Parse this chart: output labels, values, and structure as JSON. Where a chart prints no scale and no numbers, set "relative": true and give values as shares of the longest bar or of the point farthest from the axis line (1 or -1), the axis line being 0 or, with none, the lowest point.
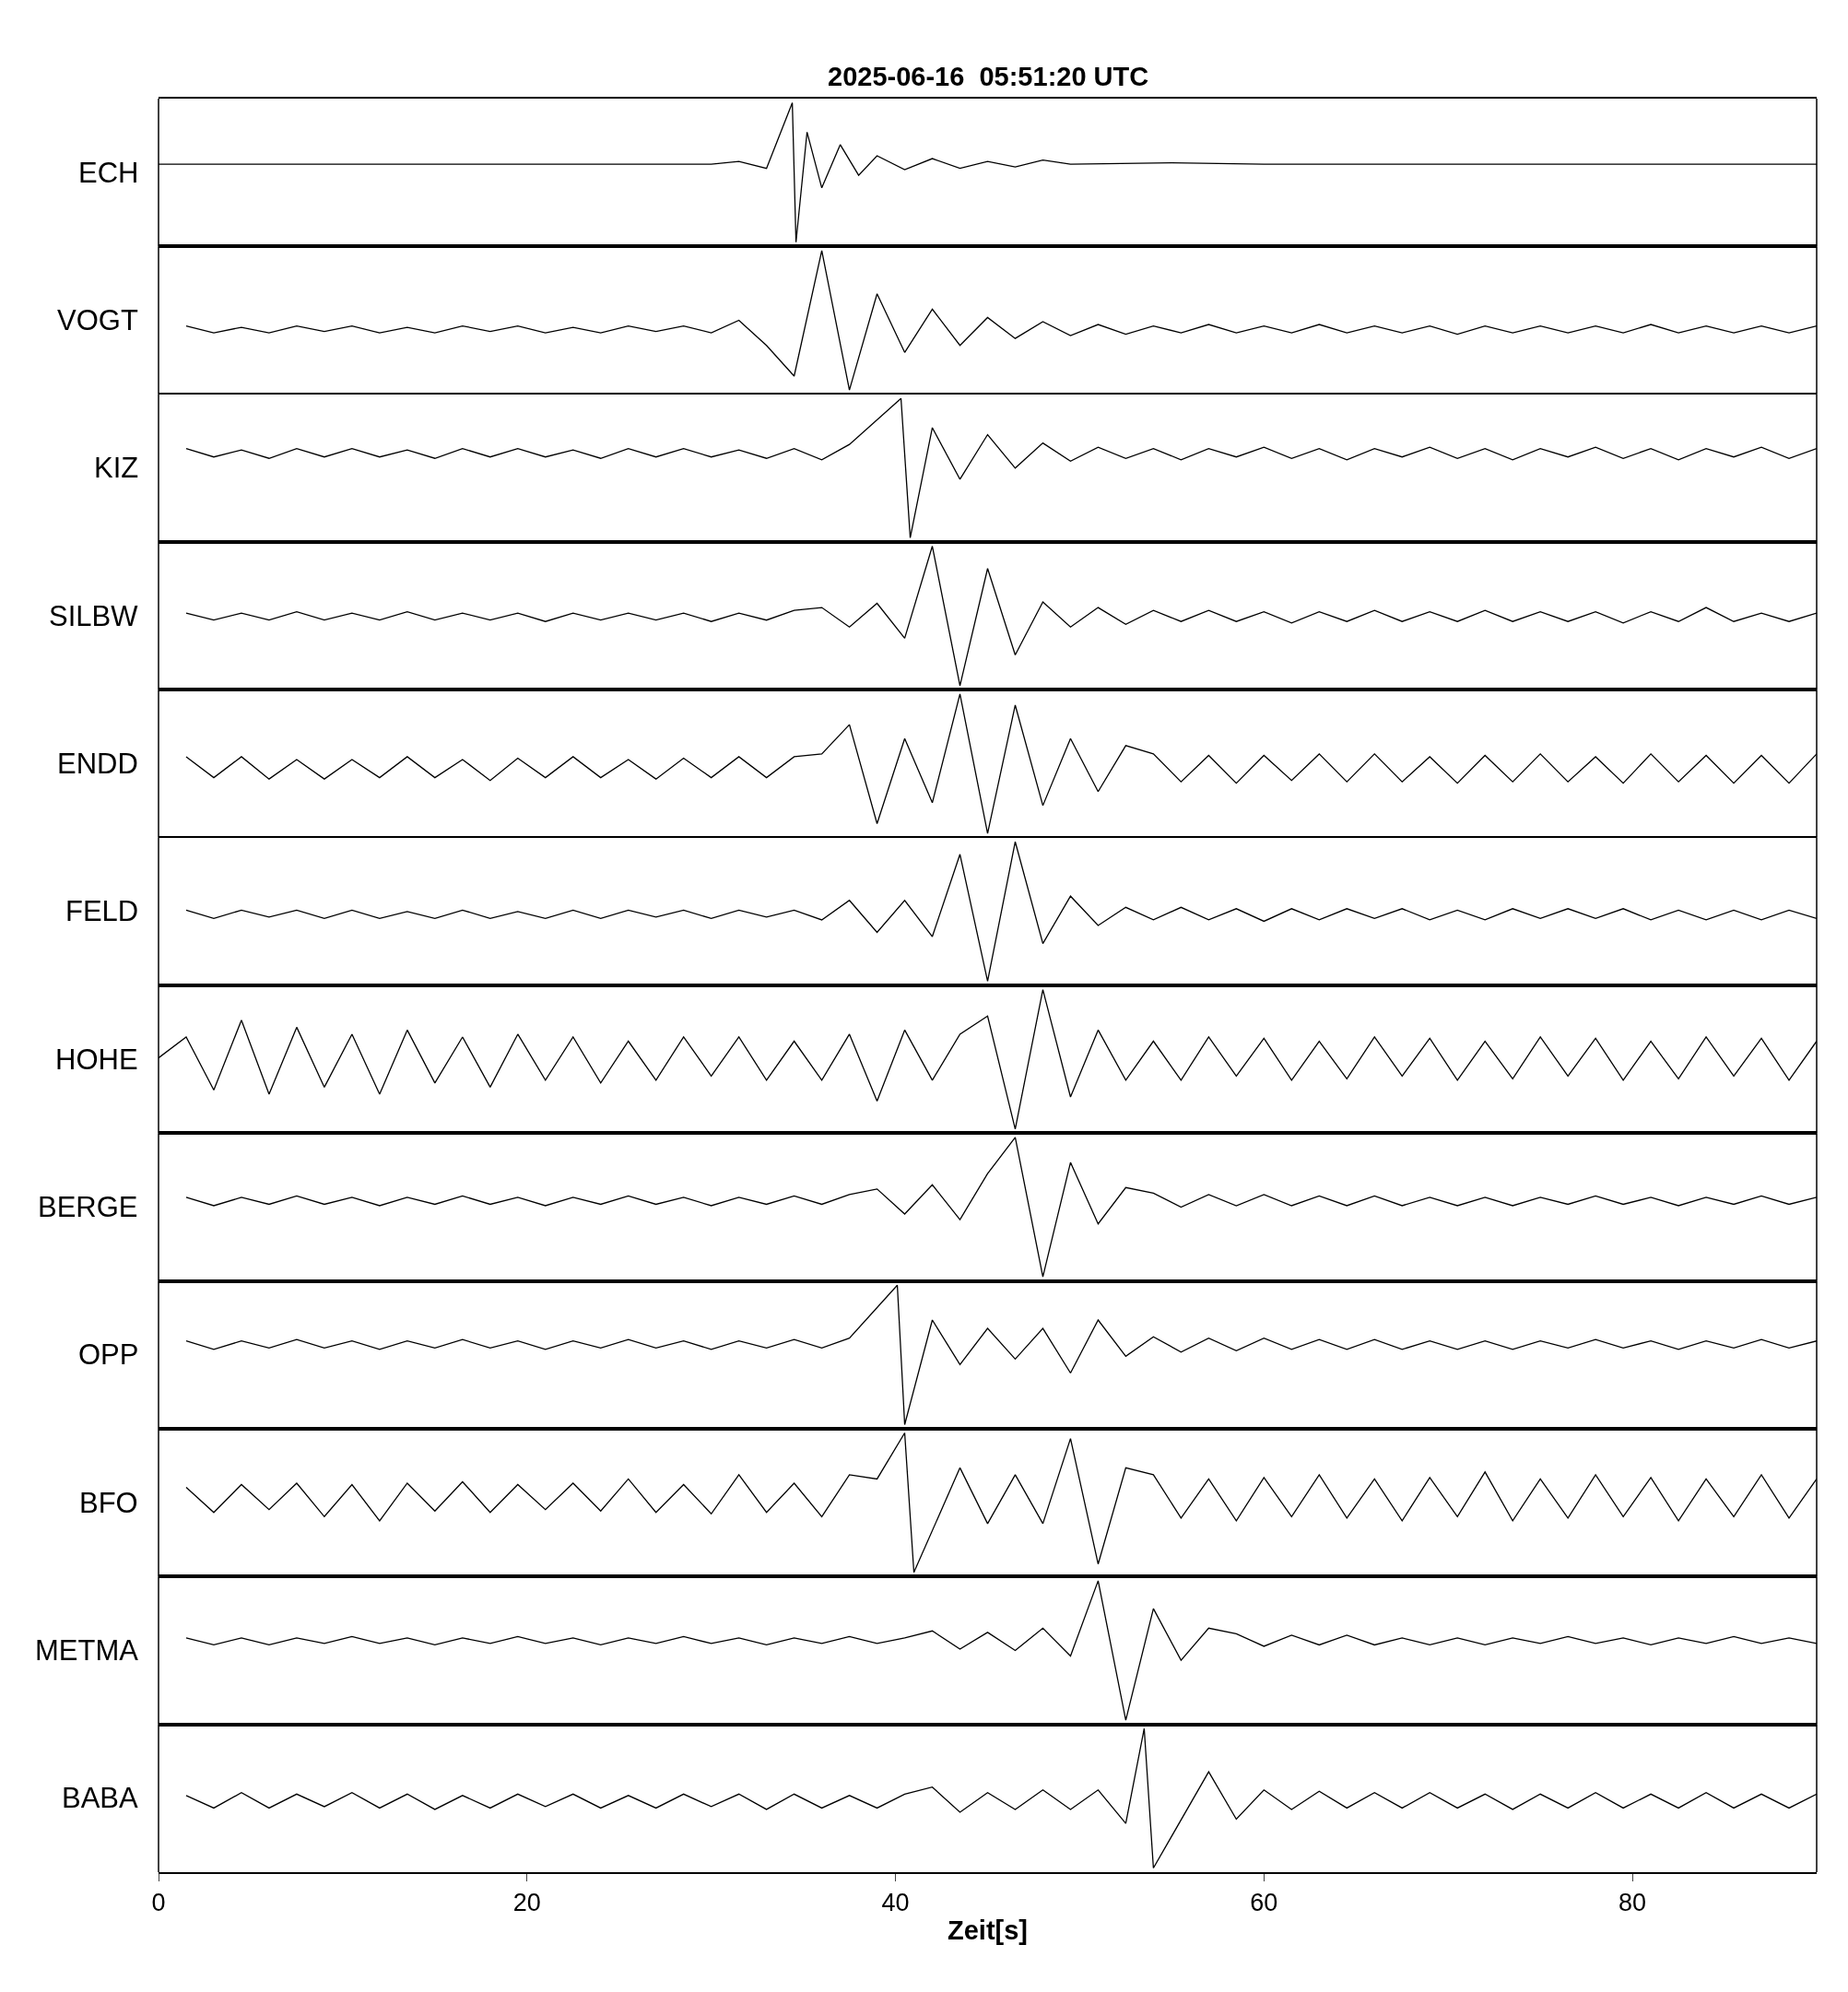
{
  "chart_data": [
    {
      "type": "line",
      "title": "2025-06-16  05:51:20 UTC",
      "ylabel": "ECH",
      "relative": true,
      "color": "#000000",
      "xlim": [
        0,
        90
      ],
      "xticks": [
        0,
        20,
        40,
        60,
        80
      ],
      "tick_labels": false,
      "x": [
        0,
        30,
        31.5,
        33,
        34.4,
        34.6,
        35.2,
        36,
        37,
        38,
        39,
        40.5,
        42,
        43.5,
        45,
        46.5,
        48,
        49.5,
        55,
        60,
        90
      ],
      "values": [
        0.56,
        0.56,
        0.58,
        0.53,
        1,
        0,
        0.79,
        0.39,
        0.7,
        0.48,
        0.62,
        0.52,
        0.6,
        0.53,
        0.58,
        0.54,
        0.59,
        0.56,
        0.57,
        0.56,
        0.56
      ]
    },
    {
      "type": "line",
      "ylabel": "VOGT",
      "relative": true,
      "color": "#000000",
      "xlim": [
        0,
        90
      ],
      "xticks": [
        0,
        20,
        40,
        60,
        80
      ],
      "tick_labels": false,
      "x": [
        1.5,
        3,
        4.5,
        6,
        7.5,
        9,
        10.5,
        12,
        13.5,
        15,
        16.5,
        18,
        19.5,
        21,
        22.5,
        24,
        25.5,
        27,
        28.5,
        30,
        31.5,
        33,
        34.5,
        36,
        37.5,
        39,
        40.5,
        42,
        43.5,
        45,
        46.5,
        48,
        49.5,
        51,
        52.5,
        54,
        55.5,
        57,
        58.5,
        60,
        61.5,
        63,
        64.5,
        66,
        67.5,
        69,
        70.5,
        72,
        73.5,
        75,
        76.5,
        78,
        79.5,
        81,
        82.5,
        84,
        85.5,
        87,
        88.5,
        90
      ],
      "values": [
        0.46,
        0.41,
        0.45,
        0.41,
        0.46,
        0.42,
        0.46,
        0.41,
        0.45,
        0.41,
        0.46,
        0.42,
        0.46,
        0.41,
        0.45,
        0.41,
        0.46,
        0.42,
        0.46,
        0.41,
        0.5,
        0.32,
        0.1,
        1,
        0,
        0.69,
        0.27,
        0.58,
        0.32,
        0.52,
        0.37,
        0.49,
        0.39,
        0.47,
        0.4,
        0.46,
        0.41,
        0.47,
        0.41,
        0.46,
        0.41,
        0.47,
        0.41,
        0.46,
        0.41,
        0.46,
        0.4,
        0.46,
        0.41,
        0.46,
        0.41,
        0.46,
        0.41,
        0.47,
        0.41,
        0.46,
        0.41,
        0.46,
        0.41,
        0.46
      ]
    },
    {
      "type": "line",
      "ylabel": "KIZ",
      "relative": true,
      "color": "#000000",
      "xlim": [
        0,
        90
      ],
      "xticks": [
        0,
        20,
        40,
        60,
        80
      ],
      "tick_labels": false,
      "x": [
        1.5,
        3,
        4.5,
        6,
        7.5,
        9,
        10.5,
        12,
        13.5,
        15,
        16.5,
        18,
        19.5,
        21,
        22.5,
        24,
        25.5,
        27,
        28.5,
        30,
        31.5,
        33,
        34.5,
        36,
        37.5,
        40.3,
        40.8,
        42,
        43.5,
        45,
        46.5,
        48,
        49.5,
        51,
        52.5,
        54,
        55.5,
        57,
        58.5,
        60,
        61.5,
        63,
        64.5,
        66,
        67.5,
        69,
        70.5,
        72,
        73.5,
        75,
        76.5,
        78,
        79.5,
        81,
        82.5,
        84,
        85.5,
        87,
        88.5,
        90
      ],
      "values": [
        0.64,
        0.58,
        0.63,
        0.57,
        0.64,
        0.58,
        0.64,
        0.58,
        0.63,
        0.57,
        0.64,
        0.58,
        0.64,
        0.58,
        0.63,
        0.57,
        0.64,
        0.58,
        0.64,
        0.58,
        0.63,
        0.57,
        0.64,
        0.56,
        0.67,
        1,
        0,
        0.79,
        0.42,
        0.74,
        0.5,
        0.68,
        0.55,
        0.65,
        0.57,
        0.64,
        0.56,
        0.64,
        0.58,
        0.65,
        0.57,
        0.64,
        0.56,
        0.64,
        0.58,
        0.65,
        0.57,
        0.64,
        0.56,
        0.64,
        0.58,
        0.65,
        0.57,
        0.64,
        0.56,
        0.64,
        0.58,
        0.65,
        0.57,
        0.64
      ]
    },
    {
      "type": "line",
      "ylabel": "SILBW",
      "relative": true,
      "color": "#000000",
      "xlim": [
        0,
        90
      ],
      "xticks": [
        0,
        20,
        40,
        60,
        80
      ],
      "tick_labels": false,
      "x": [
        1.5,
        3,
        4.5,
        6,
        7.5,
        9,
        10.5,
        12,
        13.5,
        15,
        16.5,
        18,
        19.5,
        21,
        22.5,
        24,
        25.5,
        27,
        28.5,
        30,
        31.5,
        33,
        34.5,
        36,
        37.5,
        39,
        40.5,
        42,
        43.5,
        45,
        46.5,
        48,
        49.5,
        51,
        52.5,
        54,
        55.5,
        57,
        58.5,
        60,
        61.5,
        63,
        64.5,
        66,
        67.5,
        69,
        70.5,
        72,
        73.5,
        75,
        76.5,
        78,
        79.5,
        81,
        82.5,
        84,
        85.5,
        87,
        88.5,
        90
      ],
      "values": [
        0.52,
        0.47,
        0.52,
        0.47,
        0.53,
        0.47,
        0.52,
        0.47,
        0.53,
        0.47,
        0.52,
        0.47,
        0.52,
        0.46,
        0.52,
        0.47,
        0.52,
        0.47,
        0.52,
        0.46,
        0.52,
        0.47,
        0.54,
        0.56,
        0.42,
        0.59,
        0.34,
        1,
        0,
        0.84,
        0.22,
        0.6,
        0.42,
        0.56,
        0.44,
        0.54,
        0.46,
        0.54,
        0.46,
        0.53,
        0.45,
        0.53,
        0.46,
        0.54,
        0.46,
        0.53,
        0.46,
        0.54,
        0.46,
        0.53,
        0.46,
        0.53,
        0.45,
        0.53,
        0.46,
        0.56,
        0.46,
        0.52,
        0.46,
        0.52
      ]
    },
    {
      "type": "line",
      "ylabel": "ENDD",
      "relative": true,
      "color": "#000000",
      "xlim": [
        0,
        90
      ],
      "xticks": [
        0,
        20,
        40,
        60,
        80
      ],
      "tick_labels": false,
      "x": [
        1.5,
        3,
        4.5,
        6,
        7.5,
        9,
        10.5,
        12,
        13.5,
        15,
        16.5,
        18,
        19.5,
        21,
        22.5,
        24,
        25.5,
        27,
        28.5,
        30,
        31.5,
        33,
        34.5,
        36,
        37.5,
        39,
        40.5,
        42,
        43.5,
        45,
        46.5,
        48,
        49.5,
        51,
        52.5,
        54,
        55.5,
        57,
        58.5,
        60,
        61.5,
        63,
        64.5,
        66,
        67.5,
        69,
        70.5,
        72,
        73.5,
        75,
        76.5,
        78,
        79.5,
        81,
        82.5,
        84,
        85.5,
        87,
        88.5,
        90
      ],
      "values": [
        0.55,
        0.4,
        0.55,
        0.39,
        0.53,
        0.39,
        0.53,
        0.4,
        0.55,
        0.4,
        0.53,
        0.38,
        0.54,
        0.4,
        0.55,
        0.4,
        0.53,
        0.39,
        0.54,
        0.4,
        0.55,
        0.4,
        0.55,
        0.57,
        0.78,
        0.07,
        0.68,
        0.22,
        1,
        0,
        0.92,
        0.2,
        0.68,
        0.3,
        0.63,
        0.57,
        0.37,
        0.56,
        0.36,
        0.56,
        0.38,
        0.57,
        0.37,
        0.57,
        0.37,
        0.55,
        0.36,
        0.56,
        0.37,
        0.57,
        0.37,
        0.55,
        0.36,
        0.57,
        0.37,
        0.56,
        0.36,
        0.56,
        0.36,
        0.57
      ]
    },
    {
      "type": "line",
      "ylabel": "FELD",
      "relative": true,
      "color": "#000000",
      "xlim": [
        0,
        90
      ],
      "xticks": [
        0,
        20,
        40,
        60,
        80
      ],
      "tick_labels": false,
      "x": [
        1.5,
        3,
        4.5,
        6,
        7.5,
        9,
        10.5,
        12,
        13.5,
        15,
        16.5,
        18,
        19.5,
        21,
        22.5,
        24,
        25.5,
        27,
        28.5,
        30,
        31.5,
        33,
        34.5,
        36,
        37.5,
        39,
        40.5,
        42,
        43.5,
        45,
        46.5,
        48,
        49.5,
        51,
        52.5,
        54,
        55.5,
        57,
        58.5,
        60,
        61.5,
        63,
        64.5,
        66,
        67.5,
        69,
        70.5,
        72,
        73.5,
        75,
        76.5,
        78,
        79.5,
        81,
        82.5,
        84,
        85.5,
        87,
        88.5,
        90
      ],
      "values": [
        0.51,
        0.45,
        0.51,
        0.46,
        0.51,
        0.45,
        0.51,
        0.45,
        0.5,
        0.45,
        0.51,
        0.45,
        0.5,
        0.45,
        0.51,
        0.45,
        0.51,
        0.46,
        0.51,
        0.45,
        0.51,
        0.46,
        0.51,
        0.44,
        0.58,
        0.35,
        0.58,
        0.32,
        0.91,
        0,
        1,
        0.27,
        0.61,
        0.4,
        0.53,
        0.44,
        0.53,
        0.44,
        0.52,
        0.43,
        0.52,
        0.44,
        0.52,
        0.45,
        0.52,
        0.44,
        0.51,
        0.44,
        0.52,
        0.45,
        0.52,
        0.45,
        0.52,
        0.44,
        0.51,
        0.44,
        0.51,
        0.44,
        0.51,
        0.45
      ]
    },
    {
      "type": "line",
      "ylabel": "HOHE",
      "relative": true,
      "color": "#000000",
      "xlim": [
        0,
        90
      ],
      "xticks": [
        0,
        20,
        40,
        60,
        80
      ],
      "tick_labels": false,
      "x": [
        0,
        1.5,
        3,
        4.5,
        6,
        7.5,
        9,
        10.5,
        12,
        13.5,
        15,
        16.5,
        18,
        19.5,
        21,
        22.5,
        24,
        25.5,
        27,
        28.5,
        30,
        31.5,
        33,
        34.5,
        36,
        37.5,
        39,
        40.5,
        42,
        43.5,
        45,
        46.5,
        48,
        49.5,
        51,
        52.5,
        54,
        55.5,
        57,
        58.5,
        60,
        61.5,
        63,
        64.5,
        66,
        67.5,
        69,
        70.5,
        72,
        73.5,
        75,
        76.5,
        78,
        79.5,
        81,
        82.5,
        84,
        85.5,
        87,
        88.5,
        90
      ],
      "values": [
        0.51,
        0.66,
        0.28,
        0.78,
        0.25,
        0.73,
        0.3,
        0.68,
        0.25,
        0.71,
        0.33,
        0.66,
        0.3,
        0.68,
        0.35,
        0.66,
        0.33,
        0.63,
        0.35,
        0.66,
        0.38,
        0.66,
        0.35,
        0.63,
        0.35,
        0.68,
        0.2,
        0.71,
        0.35,
        0.68,
        0.81,
        0,
        1,
        0.23,
        0.71,
        0.35,
        0.63,
        0.35,
        0.66,
        0.38,
        0.65,
        0.35,
        0.63,
        0.36,
        0.66,
        0.38,
        0.65,
        0.35,
        0.63,
        0.36,
        0.66,
        0.38,
        0.65,
        0.35,
        0.63,
        0.36,
        0.66,
        0.38,
        0.65,
        0.35,
        0.63
      ]
    },
    {
      "type": "line",
      "ylabel": "BERGE",
      "relative": true,
      "color": "#000000",
      "xlim": [
        0,
        90
      ],
      "xticks": [
        0,
        20,
        40,
        60,
        80
      ],
      "tick_labels": false,
      "x": [
        1.5,
        3,
        4.5,
        6,
        7.5,
        9,
        10.5,
        12,
        13.5,
        15,
        16.5,
        18,
        19.5,
        21,
        22.5,
        24,
        25.5,
        27,
        28.5,
        30,
        31.5,
        33,
        34.5,
        36,
        37.5,
        39,
        40.5,
        42,
        43.5,
        45,
        46.5,
        48,
        49.5,
        51,
        52.5,
        54,
        55.5,
        57,
        58.5,
        60,
        61.5,
        63,
        64.5,
        66,
        67.5,
        69,
        70.5,
        72,
        73.5,
        75,
        76.5,
        78,
        79.5,
        81,
        82.5,
        84,
        85.5,
        87,
        88.5,
        90
      ],
      "values": [
        0.57,
        0.51,
        0.57,
        0.52,
        0.58,
        0.52,
        0.57,
        0.51,
        0.57,
        0.52,
        0.58,
        0.52,
        0.57,
        0.51,
        0.57,
        0.52,
        0.58,
        0.52,
        0.57,
        0.51,
        0.57,
        0.52,
        0.58,
        0.52,
        0.59,
        0.63,
        0.45,
        0.66,
        0.41,
        0.74,
        1,
        0,
        0.82,
        0.38,
        0.64,
        0.6,
        0.5,
        0.59,
        0.51,
        0.59,
        0.51,
        0.58,
        0.51,
        0.58,
        0.51,
        0.57,
        0.51,
        0.57,
        0.51,
        0.57,
        0.52,
        0.58,
        0.52,
        0.57,
        0.51,
        0.57,
        0.52,
        0.58,
        0.52,
        0.57
      ]
    },
    {
      "type": "line",
      "ylabel": "OPP",
      "relative": true,
      "color": "#000000",
      "xlim": [
        0,
        90
      ],
      "xticks": [
        0,
        20,
        40,
        60,
        80
      ],
      "tick_labels": false,
      "x": [
        1.5,
        3,
        4.5,
        6,
        7.5,
        9,
        10.5,
        12,
        13.5,
        15,
        16.5,
        18,
        19.5,
        21,
        22.5,
        24,
        25.5,
        27,
        28.5,
        30,
        31.5,
        33,
        34.5,
        36,
        37.5,
        40.1,
        40.5,
        42,
        43.5,
        45,
        46.5,
        48,
        49.5,
        51,
        52.5,
        54,
        55.5,
        57,
        58.5,
        60,
        61.5,
        63,
        64.5,
        66,
        67.5,
        69,
        70.5,
        72,
        73.5,
        75,
        76.5,
        78,
        79.5,
        81,
        82.5,
        84,
        85.5,
        87,
        88.5,
        90
      ],
      "values": [
        0.6,
        0.54,
        0.6,
        0.55,
        0.61,
        0.55,
        0.6,
        0.54,
        0.6,
        0.55,
        0.61,
        0.55,
        0.6,
        0.54,
        0.6,
        0.55,
        0.61,
        0.55,
        0.6,
        0.54,
        0.6,
        0.55,
        0.61,
        0.55,
        0.62,
        1,
        0,
        0.75,
        0.43,
        0.69,
        0.47,
        0.69,
        0.37,
        0.75,
        0.49,
        0.63,
        0.52,
        0.62,
        0.53,
        0.62,
        0.54,
        0.61,
        0.54,
        0.61,
        0.54,
        0.6,
        0.54,
        0.6,
        0.54,
        0.6,
        0.55,
        0.61,
        0.55,
        0.6,
        0.54,
        0.6,
        0.55,
        0.61,
        0.55,
        0.6
      ]
    },
    {
      "type": "line",
      "ylabel": "BFO",
      "relative": true,
      "color": "#000000",
      "xlim": [
        0,
        90
      ],
      "xticks": [
        0,
        20,
        40,
        60,
        80
      ],
      "tick_labels": false,
      "x": [
        1.5,
        3,
        4.5,
        6,
        7.5,
        9,
        10.5,
        12,
        13.5,
        15,
        16.5,
        18,
        19.5,
        21,
        22.5,
        24,
        25.5,
        27,
        28.5,
        30,
        31.5,
        33,
        34.5,
        36,
        37.5,
        39,
        40.5,
        41,
        43.5,
        45,
        46.5,
        48,
        49.5,
        51,
        52.5,
        54,
        55.5,
        57,
        58.5,
        60,
        61.5,
        63,
        64.5,
        66,
        67.5,
        69,
        70.5,
        72,
        73.5,
        75,
        76.5,
        78,
        79.5,
        81,
        82.5,
        84,
        85.5,
        87,
        88.5,
        90
      ],
      "values": [
        0.61,
        0.43,
        0.63,
        0.45,
        0.64,
        0.4,
        0.63,
        0.37,
        0.64,
        0.44,
        0.65,
        0.43,
        0.63,
        0.45,
        0.64,
        0.44,
        0.67,
        0.43,
        0.63,
        0.42,
        0.7,
        0.43,
        0.64,
        0.4,
        0.7,
        0.67,
        1,
        0,
        0.75,
        0.35,
        0.7,
        0.35,
        0.96,
        0.06,
        0.75,
        0.7,
        0.39,
        0.67,
        0.37,
        0.68,
        0.4,
        0.7,
        0.39,
        0.67,
        0.37,
        0.68,
        0.4,
        0.72,
        0.37,
        0.67,
        0.39,
        0.7,
        0.4,
        0.68,
        0.37,
        0.67,
        0.4,
        0.7,
        0.39,
        0.67
      ]
    },
    {
      "type": "line",
      "ylabel": "METMA",
      "relative": true,
      "color": "#000000",
      "xlim": [
        0,
        90
      ],
      "xticks": [
        0,
        20,
        40,
        60,
        80
      ],
      "tick_labels": false,
      "x": [
        1.5,
        3,
        4.5,
        6,
        7.5,
        9,
        10.5,
        12,
        13.5,
        15,
        16.5,
        18,
        19.5,
        21,
        22.5,
        24,
        25.5,
        27,
        28.5,
        30,
        31.5,
        33,
        34.5,
        36,
        37.5,
        39,
        40.5,
        42,
        43.5,
        45,
        46.5,
        48,
        49.5,
        51,
        52.5,
        54,
        55.5,
        57,
        58.5,
        60,
        61.5,
        63,
        64.5,
        66,
        67.5,
        69,
        70.5,
        72,
        73.5,
        75,
        76.5,
        78,
        79.5,
        81,
        82.5,
        84,
        85.5,
        87,
        88.5,
        90
      ],
      "values": [
        0.59,
        0.54,
        0.59,
        0.54,
        0.59,
        0.55,
        0.6,
        0.55,
        0.59,
        0.54,
        0.59,
        0.55,
        0.6,
        0.55,
        0.59,
        0.54,
        0.59,
        0.55,
        0.6,
        0.55,
        0.59,
        0.54,
        0.59,
        0.55,
        0.6,
        0.55,
        0.59,
        0.64,
        0.51,
        0.63,
        0.5,
        0.66,
        0.46,
        1,
        0,
        0.8,
        0.43,
        0.66,
        0.62,
        0.53,
        0.61,
        0.54,
        0.61,
        0.54,
        0.59,
        0.54,
        0.59,
        0.54,
        0.59,
        0.55,
        0.6,
        0.55,
        0.59,
        0.54,
        0.59,
        0.55,
        0.6,
        0.55,
        0.59,
        0.55
      ]
    },
    {
      "type": "line",
      "ylabel": "BABA",
      "xlabel": "Zeit[s]",
      "relative": true,
      "color": "#000000",
      "xlim": [
        0,
        90
      ],
      "xticks": [
        0,
        20,
        40,
        60,
        80
      ],
      "tick_labels": "x",
      "x": [
        1.5,
        3,
        4.5,
        6,
        7.5,
        9,
        10.5,
        12,
        13.5,
        15,
        16.5,
        18,
        19.5,
        21,
        22.5,
        24,
        25.5,
        27,
        28.5,
        30,
        31.5,
        33,
        34.5,
        36,
        37.5,
        39,
        40.5,
        42,
        43.5,
        45,
        46.5,
        48,
        49.5,
        51,
        52.5,
        53.5,
        54,
        57,
        58.5,
        60,
        61.5,
        63,
        64.5,
        66,
        67.5,
        69,
        70.5,
        72,
        73.5,
        75,
        76.5,
        78,
        79.5,
        81,
        82.5,
        84,
        85.5,
        87,
        88.5,
        90
      ],
      "values": [
        0.52,
        0.43,
        0.54,
        0.43,
        0.53,
        0.44,
        0.54,
        0.43,
        0.53,
        0.42,
        0.52,
        0.43,
        0.53,
        0.44,
        0.53,
        0.43,
        0.52,
        0.43,
        0.53,
        0.44,
        0.53,
        0.42,
        0.53,
        0.43,
        0.52,
        0.43,
        0.53,
        0.58,
        0.4,
        0.54,
        0.42,
        0.56,
        0.42,
        0.56,
        0.32,
        1,
        0,
        0.69,
        0.35,
        0.56,
        0.42,
        0.55,
        0.43,
        0.54,
        0.43,
        0.54,
        0.43,
        0.53,
        0.42,
        0.53,
        0.43,
        0.54,
        0.43,
        0.53,
        0.43,
        0.54,
        0.43,
        0.53,
        0.43,
        0.53
      ]
    }
  ]
}
